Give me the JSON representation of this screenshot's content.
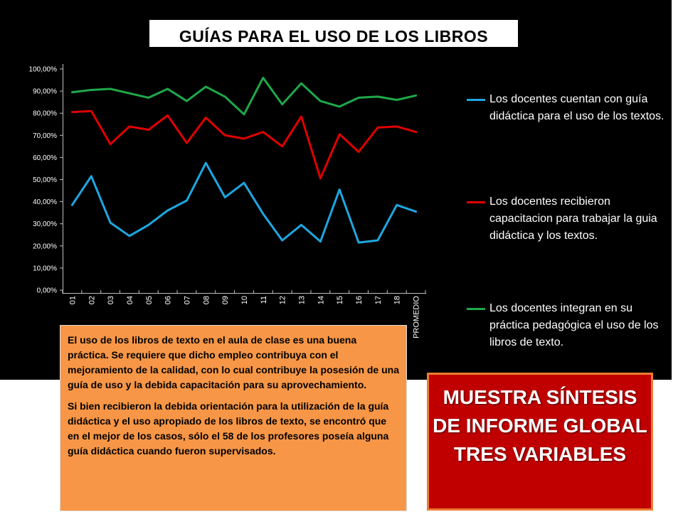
{
  "slide": {
    "title": "GUÍAS PARA EL USO DE LOS LIBROS",
    "paragraph_1": "El uso de los libros de texto en el aula de clase es una buena práctica. Se requiere que dicho empleo contribuya con el mejoramiento de la calidad, con lo cual contribuye la posesión de una guía de uso y la debida capacitación para su aprovechamiento.",
    "paragraph_2": "Si bien recibieron la debida orientación para la utilización de la guía didáctica y el uso apropiado de los libros de texto, se encontró que en el mejor de los casos, sólo el 58 de los profesores poseía alguna guía didáctica cuando fueron supervisados.",
    "banner_text": "MUESTRA SÍNTESIS DE INFORME GLOBAL TRES VARIABLES"
  },
  "colors": {
    "background": "#000000",
    "text_box": "#f79646",
    "banner": "#c00000",
    "banner_border": "#ed7d31"
  },
  "chart_data": {
    "type": "line",
    "title": "GUÍAS PARA EL USO DE LOS LIBROS",
    "xlabel": "",
    "ylabel": "",
    "categories": [
      "01",
      "02",
      "03",
      "04",
      "05",
      "06",
      "07",
      "08",
      "09",
      "10",
      "11",
      "12",
      "13",
      "14",
      "15",
      "16",
      "17",
      "18",
      "PROMEDIO"
    ],
    "y_ticks": [
      "0,00%",
      "10,00%",
      "20,00%",
      "30,00%",
      "40,00%",
      "50,00%",
      "60,00%",
      "70,00%",
      "80,00%",
      "90,00%",
      "100,00%"
    ],
    "ylim": [
      0,
      100
    ],
    "grid": false,
    "legend_position": "right",
    "series": [
      {
        "name": "Los docentes cuentan con guía didáctica para el uso de los textos.",
        "color": "#1ea7e1",
        "values": [
          38.5,
          51.5,
          30.5,
          24.5,
          29.5,
          36,
          40.5,
          57.5,
          42,
          48.5,
          34.5,
          22.5,
          29.5,
          22,
          45.5,
          21.5,
          22.5,
          38.5,
          35.5
        ]
      },
      {
        "name": "Los docentes recibieron capacitacion para trabajar la guia didáctica y los textos.",
        "color": "#e00000",
        "values": [
          80.5,
          81,
          66,
          74,
          72.5,
          79,
          66.5,
          78,
          70,
          68.5,
          71.5,
          65,
          78.5,
          50.5,
          70.5,
          62.5,
          73.5,
          74,
          71.5
        ]
      },
      {
        "name": "Los docentes integran en su práctica pedagógica el uso de los libros de texto.",
        "color": "#1fa84a",
        "values": [
          89.5,
          90.5,
          91,
          89,
          87,
          91,
          85.5,
          92,
          87.5,
          79.5,
          96,
          84,
          93.5,
          85.5,
          83,
          87,
          87.5,
          86,
          88
        ]
      }
    ]
  }
}
